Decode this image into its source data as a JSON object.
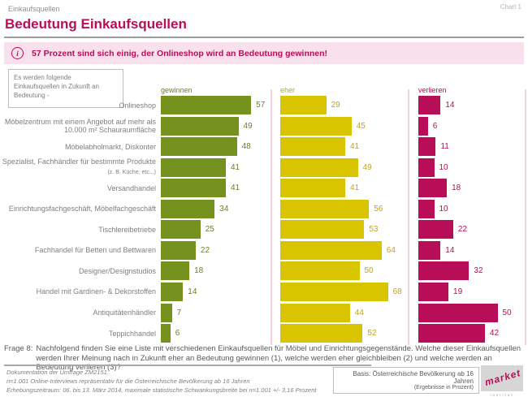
{
  "header": {
    "breadcrumb": "Einkaufsquellen",
    "chart_number": "Chart 1",
    "title": "Bedeutung Einkaufsquellen"
  },
  "callout": {
    "text": "57 Prozent sind sich einig, der Onlineshop wird an Bedeutung gewinnen!",
    "icon": "info-icon",
    "accent_color": "#b80d57",
    "background_color": "#f8e1ed"
  },
  "intro_box": {
    "text": "Es werden folgende Einkaufsquellen in Zukunft an Bedeutung -"
  },
  "chart_data": {
    "type": "bar",
    "orientation": "horizontal",
    "value_labels": true,
    "xlim": [
      0,
      100
    ],
    "unit": "Prozent",
    "categories": [
      {
        "label": "Onlineshop"
      },
      {
        "label": "Möbelzentrum mit einem Angebot auf mehr als 10.000 m² Schauraumfläche"
      },
      {
        "label": "Möbelabholmarkt, Diskonter"
      },
      {
        "label": "Spezialist, Fachhändler für bestimmte Produkte",
        "note": "(z. B. Küche, etc...)"
      },
      {
        "label": "Versandhandel"
      },
      {
        "label": "Einrichtungsfachgeschäft, Möbelfachgeschäft"
      },
      {
        "label": "Tischlereibetriebe"
      },
      {
        "label": "Fachhandel für Betten und Bettwaren"
      },
      {
        "label": "Designer/Designstudios"
      },
      {
        "label": "Handel mit Gardinen- & Dekorstoffen"
      },
      {
        "label": "Antiquitätenhändler"
      },
      {
        "label": "Teppichhandel"
      }
    ],
    "series": [
      {
        "name": "gewinnen",
        "color": "#76921e",
        "label_color": "#6d7f28",
        "values": [
          57,
          49,
          48,
          41,
          41,
          34,
          25,
          22,
          18,
          14,
          7,
          6
        ]
      },
      {
        "name": "eher",
        "color": "#d9c400",
        "label_color": "#bfa426",
        "values": [
          29,
          45,
          41,
          49,
          41,
          56,
          53,
          64,
          50,
          68,
          44,
          52
        ]
      },
      {
        "name": "verlieren",
        "color": "#b80d57",
        "label_color": "#b80d57",
        "values": [
          14,
          6,
          11,
          10,
          18,
          10,
          22,
          14,
          32,
          19,
          50,
          42
        ]
      }
    ]
  },
  "question": {
    "label": "Frage 8:",
    "text": "Nachfolgend finden Sie eine Liste mit verschiedenen Einkaufsquellen für Möbel und Einrichtungsgegenstände. Welche dieser Einkaufsquellen werden Ihrer Meinung nach in Zukunft eher an Bedeutung gewinnen (1), welche werden eher gleichbleiben (2) und welche werden an Bedeutung verlieren (3)?"
  },
  "footer": {
    "documentation": {
      "line1": "Dokumentation der Umfrage ZM2151:",
      "line2": "n=1.001 Online-Interviews repräsentativ für die Österreichische Bevölkerung ab 16 Jahren",
      "line3": "Erhebungszeitraum: 06. bis 13. März 2014, maximale statistische Schwankungsbreite bei n=1.001 +/- 3,16 Prozent"
    },
    "basis_box": {
      "line1": "Basis: Österreichische Bevölkerung ab 16 Jahren",
      "line2": "(Ergebnisse in Prozent)"
    },
    "logo": {
      "word": "market",
      "sub": "institut"
    }
  }
}
